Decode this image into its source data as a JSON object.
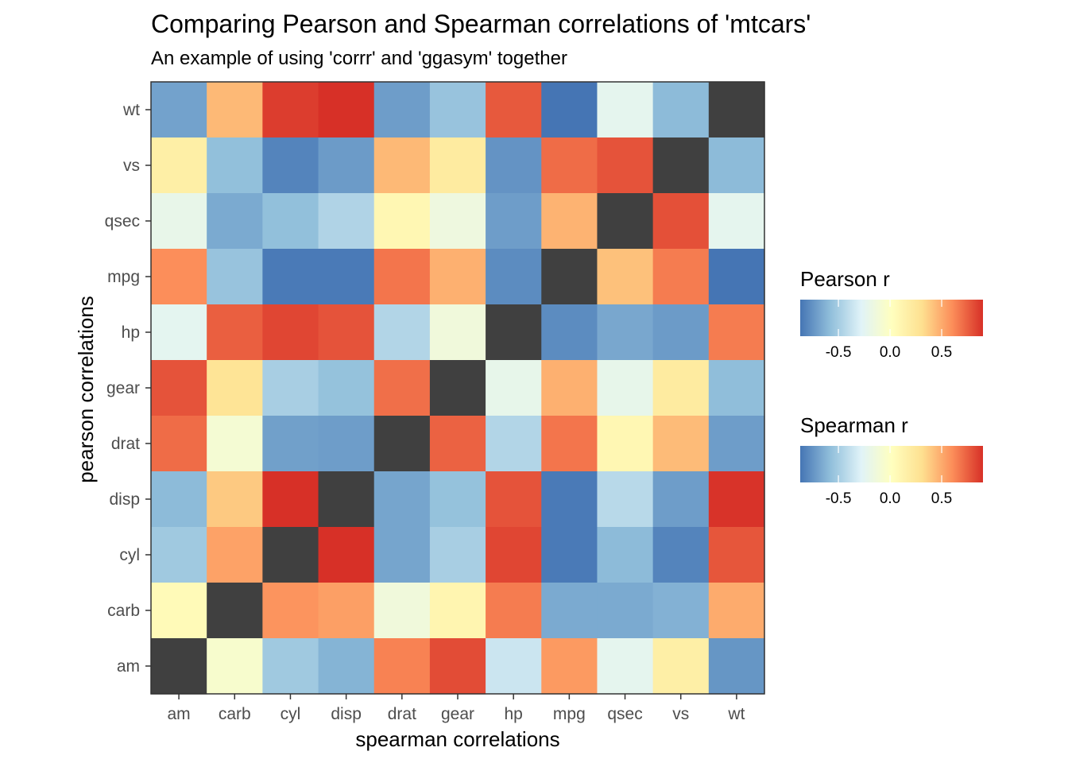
{
  "chart_data": {
    "type": "heatmap",
    "title": "Comparing Pearson and Spearman correlations of 'mtcars'",
    "subtitle": "An example of using 'corrr' and 'ggasym' together",
    "xlabel": "spearman correlations",
    "ylabel": "pearson correlations",
    "x_categories": [
      "am",
      "carb",
      "cyl",
      "disp",
      "drat",
      "gear",
      "hp",
      "mpg",
      "qsec",
      "vs",
      "wt"
    ],
    "y_categories_top_to_bottom": [
      "wt",
      "vs",
      "qsec",
      "mpg",
      "hp",
      "gear",
      "drat",
      "disp",
      "cyl",
      "carb",
      "am"
    ],
    "cells_note": "rows follow y_categories_top_to_bottom; columns follow x_categories; null = diagonal (dark)",
    "values": [
      [
        -0.69,
        0.45,
        0.86,
        0.9,
        -0.71,
        -0.55,
        0.77,
        -0.89,
        -0.23,
        -0.59,
        null
      ],
      [
        0.17,
        -0.57,
        -0.81,
        -0.72,
        0.45,
        0.21,
        -0.75,
        0.71,
        0.79,
        null,
        -0.59
      ],
      [
        -0.2,
        -0.66,
        -0.57,
        -0.46,
        0.09,
        -0.15,
        -0.71,
        0.47,
        null,
        0.8,
        -0.23
      ],
      [
        0.6,
        -0.55,
        -0.85,
        -0.85,
        0.68,
        0.48,
        -0.78,
        null,
        0.42,
        0.66,
        -0.87
      ],
      [
        -0.24,
        0.75,
        0.83,
        0.79,
        -0.45,
        -0.13,
        null,
        -0.78,
        -0.67,
        -0.72,
        0.66
      ],
      [
        0.79,
        0.27,
        -0.49,
        -0.56,
        0.7,
        null,
        -0.21,
        0.48,
        -0.21,
        0.21,
        -0.58
      ],
      [
        0.71,
        -0.09,
        -0.7,
        -0.71,
        null,
        0.74,
        -0.45,
        0.68,
        0.09,
        0.44,
        -0.71
      ],
      [
        -0.59,
        0.39,
        0.9,
        null,
        -0.68,
        -0.56,
        0.79,
        -0.85,
        -0.43,
        -0.71,
        0.89
      ],
      [
        -0.52,
        0.53,
        null,
        0.9,
        -0.68,
        -0.49,
        0.83,
        -0.85,
        -0.59,
        -0.81,
        0.78
      ],
      [
        0.06,
        null,
        0.58,
        0.54,
        -0.13,
        0.11,
        0.66,
        -0.66,
        -0.66,
        -0.63,
        0.5
      ],
      [
        null,
        -0.06,
        -0.52,
        -0.62,
        0.64,
        0.81,
        -0.36,
        0.56,
        -0.23,
        0.17,
        -0.74
      ]
    ],
    "legends": [
      {
        "title": "Pearson r",
        "ticks": [
          "-0.5",
          "0.0",
          "0.5"
        ],
        "tick_values": [
          -0.5,
          0.0,
          0.5
        ],
        "range": [
          -0.87,
          0.9
        ]
      },
      {
        "title": "Spearman r",
        "ticks": [
          "-0.5",
          "0.0",
          "0.5"
        ],
        "tick_values": [
          -0.5,
          0.0,
          0.5
        ],
        "range": [
          -0.87,
          0.9
        ]
      }
    ],
    "colors": {
      "scale": [
        "#4575b4",
        "#91bfdb",
        "#e0f3f8",
        "#ffffbf",
        "#fee090",
        "#fc8d59",
        "#d73027"
      ],
      "diagonal": "#404040"
    },
    "legend_position": "right"
  }
}
